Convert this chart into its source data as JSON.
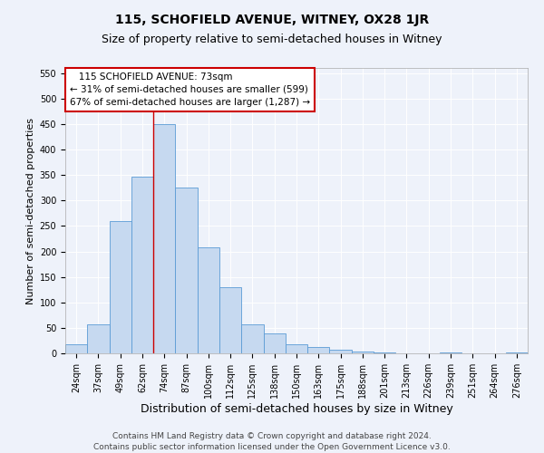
{
  "title": "115, SCHOFIELD AVENUE, WITNEY, OX28 1JR",
  "subtitle": "Size of property relative to semi-detached houses in Witney",
  "xlabel": "Distribution of semi-detached houses by size in Witney",
  "ylabel": "Number of semi-detached properties",
  "footer_line1": "Contains HM Land Registry data © Crown copyright and database right 2024.",
  "footer_line2": "Contains public sector information licensed under the Open Government Licence v3.0.",
  "categories": [
    "24sqm",
    "37sqm",
    "49sqm",
    "62sqm",
    "74sqm",
    "87sqm",
    "100sqm",
    "112sqm",
    "125sqm",
    "138sqm",
    "150sqm",
    "163sqm",
    "175sqm",
    "188sqm",
    "201sqm",
    "213sqm",
    "226sqm",
    "239sqm",
    "251sqm",
    "264sqm",
    "276sqm"
  ],
  "values": [
    17,
    57,
    260,
    347,
    450,
    325,
    208,
    130,
    57,
    40,
    17,
    12,
    8,
    4,
    2,
    0,
    0,
    2,
    0,
    0,
    2
  ],
  "bar_color": "#c6d9f0",
  "bar_edge_color": "#5b9bd5",
  "annotation_line1": "   115 SCHOFIELD AVENUE: 73sqm",
  "annotation_line2": "← 31% of semi-detached houses are smaller (599)",
  "annotation_line3": "67% of semi-detached houses are larger (1,287) →",
  "annotation_box_color": "#ffffff",
  "annotation_box_edge": "#cc0000",
  "vline_color": "#cc0000",
  "vline_x": 3.5,
  "ylim": [
    0,
    560
  ],
  "yticks": [
    0,
    50,
    100,
    150,
    200,
    250,
    300,
    350,
    400,
    450,
    500,
    550
  ],
  "background_color": "#eef2fa",
  "title_fontsize": 10,
  "subtitle_fontsize": 9,
  "xlabel_fontsize": 9,
  "ylabel_fontsize": 8,
  "tick_fontsize": 7,
  "annotation_fontsize": 7.5,
  "footer_fontsize": 6.5
}
